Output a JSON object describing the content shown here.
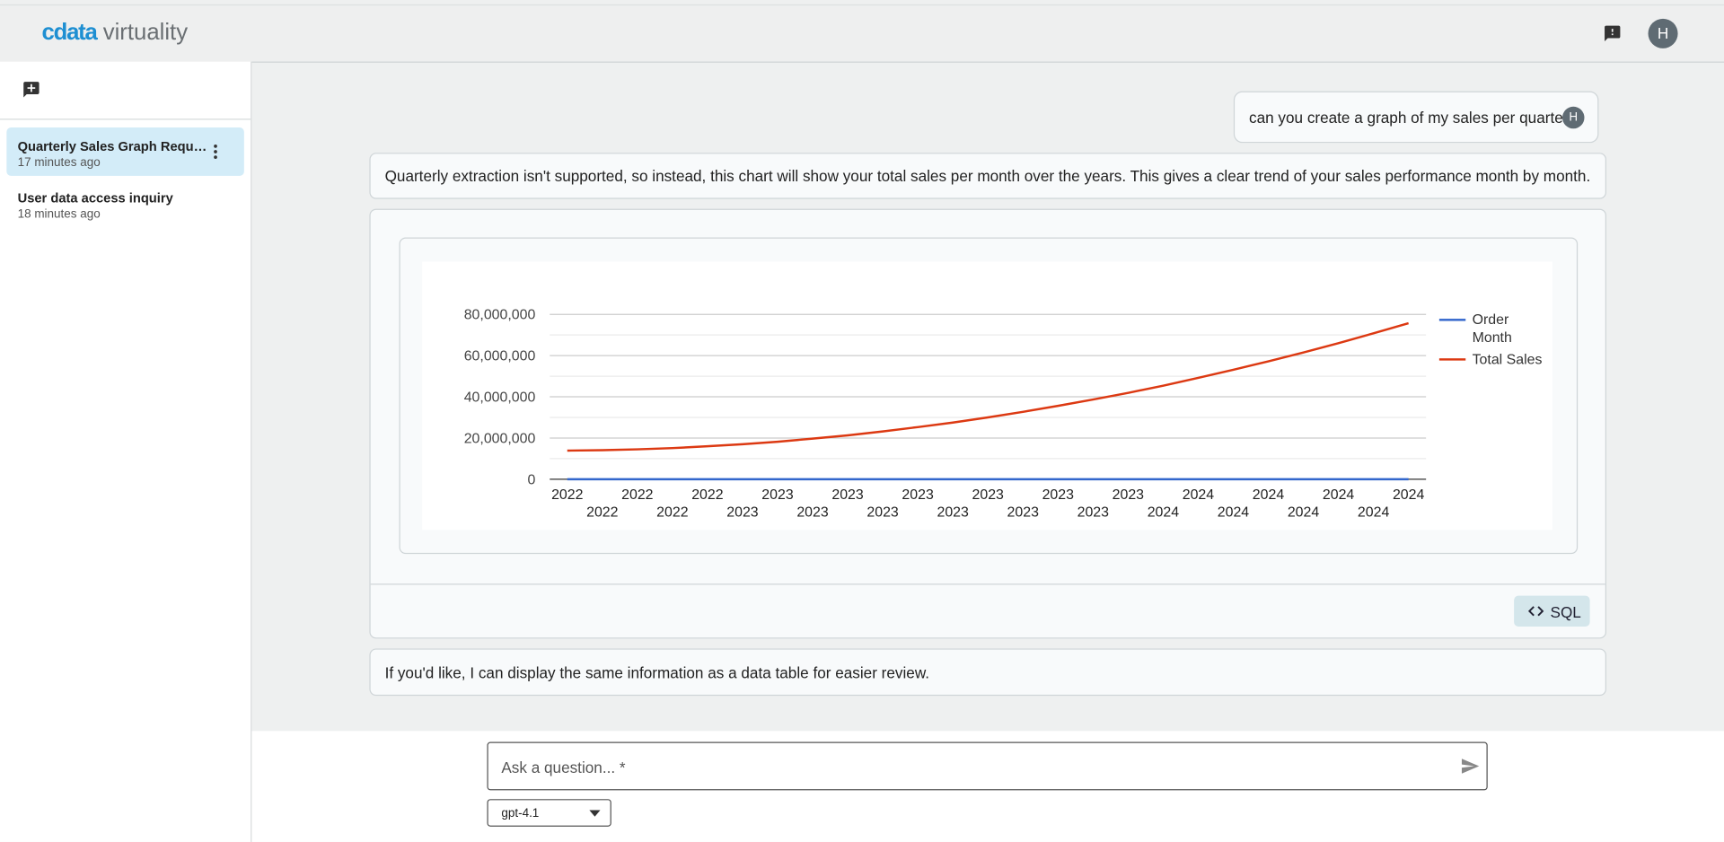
{
  "header": {
    "logo": {
      "brand": "cdata",
      "product": "virtuality"
    },
    "avatar": "H"
  },
  "sidebar": {
    "conversations": [
      {
        "title": "Quarterly Sales Graph Requ…",
        "time": "17 minutes ago"
      },
      {
        "title": "User data access inquiry",
        "time": "18 minutes ago"
      }
    ]
  },
  "conversation": {
    "user_message": {
      "text": "can you create a graph of my sales per quarter?",
      "avatar": "H"
    },
    "assistant_intro": "Quarterly extraction isn't supported, so instead, this chart will show your total sales per month over the years. This gives a clear trend of your sales performance month by month.",
    "sql_button": "SQL",
    "assistant_followup": "If you'd like, I can display the same information as a data table for easier review."
  },
  "chart_data": {
    "type": "line",
    "categories": [
      "2022",
      "2022",
      "2022",
      "2022",
      "2022",
      "2023",
      "2023",
      "2023",
      "2023",
      "2023",
      "2023",
      "2023",
      "2023",
      "2023",
      "2023",
      "2023",
      "2023",
      "2024",
      "2024",
      "2024",
      "2024",
      "2024",
      "2024",
      "2024",
      "2024"
    ],
    "series": [
      {
        "name": "Order Month",
        "color": "#3366cc",
        "values": [
          0,
          0,
          0,
          0,
          0,
          0,
          0,
          0,
          0,
          0,
          0,
          0,
          0,
          0,
          0,
          0,
          0,
          0,
          0,
          0,
          0,
          0,
          0,
          0,
          0
        ]
      },
      {
        "name": "Total Sales",
        "color": "#dc3912",
        "values": [
          13900000,
          14100000,
          14500000,
          15100000,
          16000000,
          17000000,
          18200000,
          19700000,
          21300000,
          23200000,
          25300000,
          27500000,
          30000000,
          32700000,
          35600000,
          38700000,
          41900000,
          45400000,
          49200000,
          53100000,
          57200000,
          61500000,
          66000000,
          70800000,
          75700000
        ]
      }
    ],
    "ylim": [
      0,
      80000000
    ],
    "yticks": [
      {
        "value": 0,
        "label": "0"
      },
      {
        "value": 20000000,
        "label": "20,000,000"
      },
      {
        "value": 40000000,
        "label": "40,000,000"
      },
      {
        "value": 60000000,
        "label": "60,000,000"
      },
      {
        "value": 80000000,
        "label": "80,000,000"
      }
    ],
    "minor_yticks": [
      10000000,
      30000000,
      50000000,
      70000000
    ],
    "grid": true,
    "legend": "right"
  },
  "composer": {
    "placeholder": "Ask a question... *",
    "model": "gpt-4.1"
  }
}
